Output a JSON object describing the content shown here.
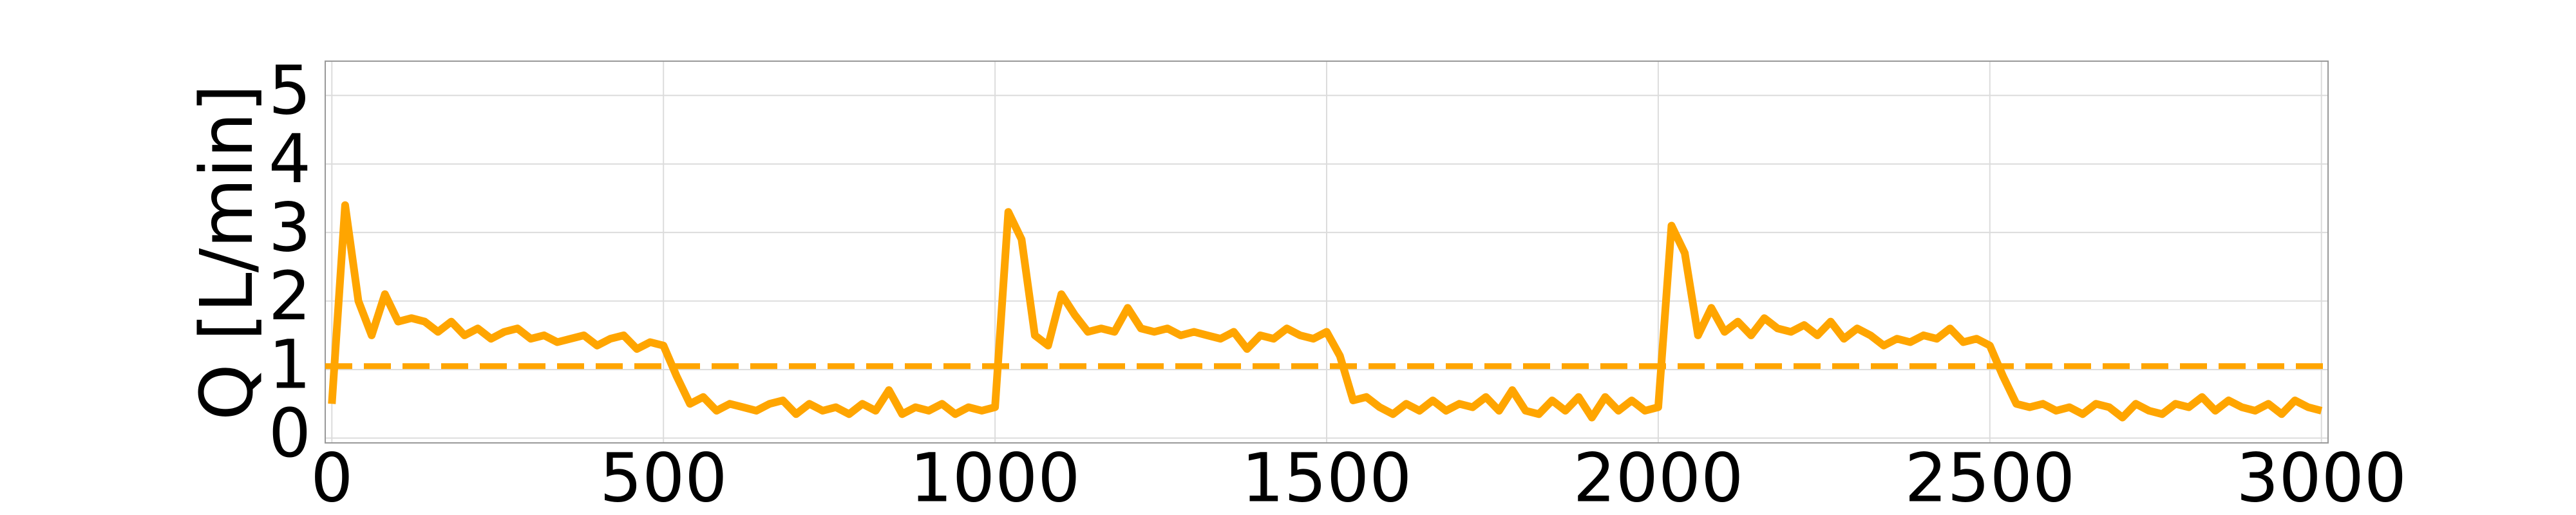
{
  "chart_data": {
    "type": "line",
    "ylabel": "Q [L/min]",
    "x": [
      0,
      20,
      40,
      60,
      80,
      100,
      120,
      140,
      160,
      180,
      200,
      220,
      240,
      260,
      280,
      300,
      320,
      340,
      360,
      380,
      400,
      420,
      440,
      460,
      480,
      500,
      520,
      540,
      560,
      580,
      600,
      620,
      640,
      660,
      680,
      700,
      720,
      740,
      760,
      780,
      800,
      820,
      840,
      860,
      880,
      900,
      920,
      940,
      960,
      980,
      1000,
      1020,
      1040,
      1060,
      1080,
      1100,
      1120,
      1140,
      1160,
      1180,
      1200,
      1220,
      1240,
      1260,
      1280,
      1300,
      1320,
      1340,
      1360,
      1380,
      1400,
      1420,
      1440,
      1460,
      1480,
      1500,
      1520,
      1540,
      1560,
      1580,
      1600,
      1620,
      1640,
      1660,
      1680,
      1700,
      1720,
      1740,
      1760,
      1780,
      1800,
      1820,
      1840,
      1860,
      1880,
      1900,
      1920,
      1940,
      1960,
      1980,
      2000,
      2020,
      2040,
      2060,
      2080,
      2100,
      2120,
      2140,
      2160,
      2180,
      2200,
      2220,
      2240,
      2260,
      2280,
      2300,
      2320,
      2340,
      2360,
      2380,
      2400,
      2420,
      2440,
      2460,
      2480,
      2500,
      2520,
      2540,
      2560,
      2580,
      2600,
      2620,
      2640,
      2660,
      2680,
      2700,
      2720,
      2740,
      2760,
      2780,
      2800,
      2820,
      2840,
      2860,
      2880,
      2900,
      2920,
      2940,
      2960,
      2980,
      3000
    ],
    "series": [
      {
        "color": "#ffa500",
        "values": [
          0.5,
          3.4,
          2.0,
          1.5,
          2.1,
          1.7,
          1.75,
          1.7,
          1.55,
          1.7,
          1.5,
          1.6,
          1.45,
          1.55,
          1.6,
          1.45,
          1.5,
          1.4,
          1.45,
          1.5,
          1.35,
          1.45,
          1.5,
          1.3,
          1.4,
          1.35,
          0.9,
          0.5,
          0.6,
          0.4,
          0.5,
          0.45,
          0.4,
          0.5,
          0.55,
          0.35,
          0.5,
          0.4,
          0.45,
          0.35,
          0.5,
          0.4,
          0.7,
          0.35,
          0.45,
          0.4,
          0.5,
          0.35,
          0.45,
          0.4,
          0.45,
          3.3,
          2.9,
          1.5,
          1.35,
          2.1,
          1.8,
          1.55,
          1.6,
          1.55,
          1.9,
          1.6,
          1.55,
          1.6,
          1.5,
          1.55,
          1.5,
          1.45,
          1.55,
          1.3,
          1.5,
          1.45,
          1.6,
          1.5,
          1.45,
          1.55,
          1.2,
          0.55,
          0.6,
          0.45,
          0.35,
          0.5,
          0.4,
          0.55,
          0.4,
          0.5,
          0.45,
          0.6,
          0.4,
          0.7,
          0.4,
          0.35,
          0.55,
          0.4,
          0.6,
          0.3,
          0.6,
          0.4,
          0.55,
          0.4,
          0.45,
          3.1,
          2.7,
          1.5,
          1.9,
          1.55,
          1.7,
          1.5,
          1.75,
          1.6,
          1.55,
          1.65,
          1.5,
          1.7,
          1.45,
          1.6,
          1.5,
          1.35,
          1.45,
          1.4,
          1.5,
          1.45,
          1.6,
          1.4,
          1.45,
          1.35,
          0.9,
          0.5,
          0.45,
          0.5,
          0.4,
          0.45,
          0.35,
          0.5,
          0.45,
          0.3,
          0.5,
          0.4,
          0.35,
          0.5,
          0.45,
          0.6,
          0.4,
          0.55,
          0.45,
          0.4,
          0.5,
          0.35,
          0.55,
          0.45,
          0.4
        ]
      }
    ],
    "hlines": [
      {
        "value": 1.05,
        "color": "#ffa500",
        "dashed": true
      }
    ],
    "xlim": [
      -10,
      3010
    ],
    "xticks": [
      0,
      500,
      1000,
      1500,
      2000,
      2500,
      3000
    ],
    "ylim": [
      -0.07,
      5.5
    ],
    "yticks": [
      0,
      1,
      2,
      3,
      4,
      5
    ],
    "grid": true
  }
}
